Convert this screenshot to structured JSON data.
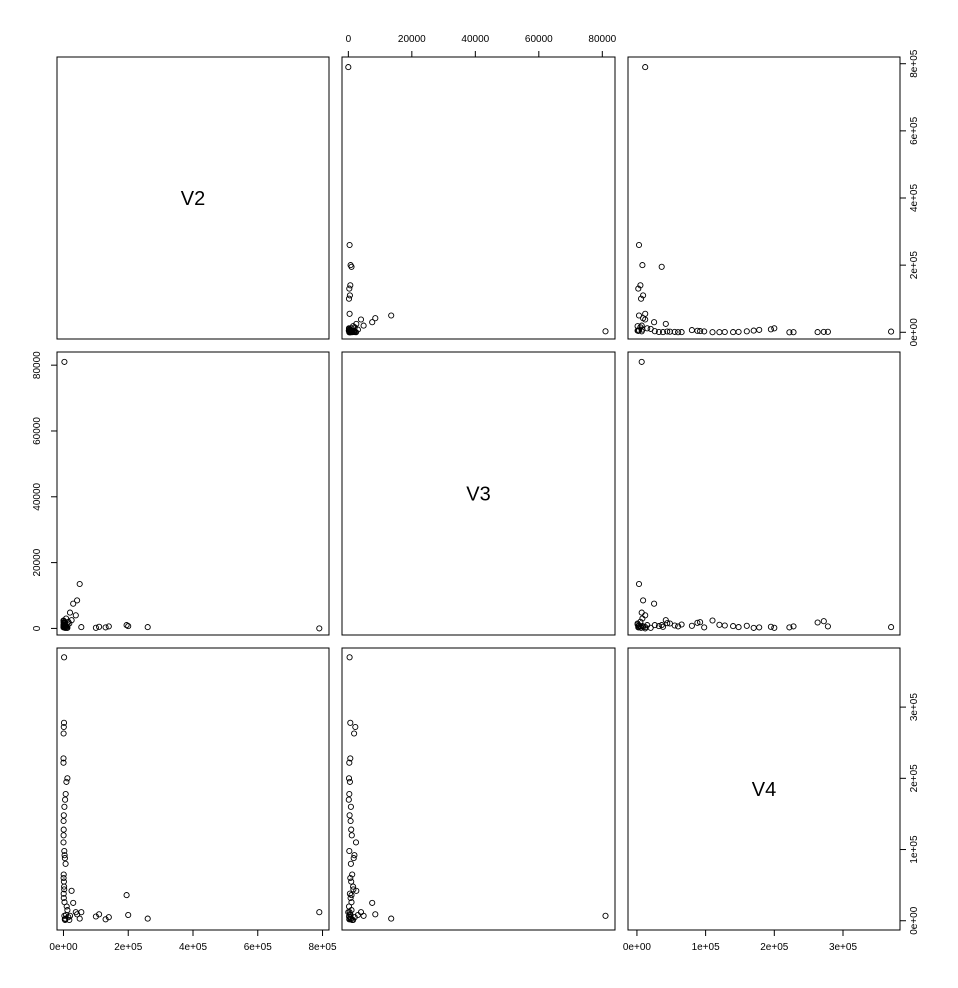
{
  "chart_data": {
    "type": "scatter",
    "layout": "scatterplot-matrix",
    "variables": [
      "V2",
      "V3",
      "V4"
    ],
    "grid": false,
    "axes": {
      "V2": {
        "lim": [
          -20000,
          820000
        ],
        "ticks": [
          0,
          200000,
          400000,
          600000,
          800000
        ],
        "tick_labels": [
          "0e+00",
          "2e+05",
          "4e+05",
          "6e+05",
          "8e+05"
        ]
      },
      "V3": {
        "lim": [
          -2000,
          84000
        ],
        "ticks": [
          0,
          20000,
          40000,
          60000,
          80000
        ],
        "tick_labels": [
          "0",
          "20000",
          "40000",
          "60000",
          "80000"
        ]
      },
      "V4": {
        "lim": [
          -13000,
          383000
        ],
        "ticks": [
          0,
          100000,
          200000,
          300000
        ],
        "tick_labels": [
          "0e+00",
          "1e+05",
          "2e+05",
          "3e+05"
        ]
      }
    },
    "observations": {
      "V2": [
        790000,
        260000,
        200000,
        195000,
        140000,
        130000,
        110000,
        100000,
        55000,
        50000,
        42000,
        38000,
        30000,
        25000,
        20000,
        18000,
        15000,
        12000,
        10000,
        8000,
        6000,
        5000,
        4000,
        3000,
        2000,
        1500,
        1000,
        500,
        200,
        100,
        12000,
        9000,
        7000,
        5000,
        3000,
        1000,
        500,
        800,
        300,
        150,
        2500,
        3500,
        4500,
        6500,
        700,
        400,
        1200,
        1800,
        2200,
        600,
        900,
        3100
      ],
      "V3": [
        0,
        400,
        700,
        1000,
        600,
        300,
        500,
        200,
        400,
        13500,
        8500,
        4000,
        7500,
        2500,
        4800,
        1500,
        2000,
        1000,
        200,
        3000,
        900,
        1200,
        800,
        81000,
        400,
        600,
        2200,
        1800,
        600,
        300,
        200,
        500,
        300,
        150,
        800,
        400,
        700,
        900,
        1100,
        2400,
        300,
        1900,
        1700,
        800,
        1200,
        600,
        900,
        1500,
        1600,
        500,
        700,
        1000
      ],
      "V4": [
        12000,
        3000,
        8000,
        36000,
        5000,
        2000,
        9000,
        6000,
        12000,
        3000,
        9000,
        12000,
        25000,
        42000,
        7000,
        1000,
        5000,
        15000,
        20000,
        8000,
        3000,
        1000,
        2000,
        7000,
        370000,
        278000,
        272000,
        263000,
        228000,
        222000,
        200000,
        195000,
        178000,
        170000,
        160000,
        148000,
        140000,
        128000,
        120000,
        110000,
        98000,
        92000,
        88000,
        80000,
        65000,
        60000,
        55000,
        48000,
        44000,
        38000,
        32000,
        26000
      ]
    }
  }
}
